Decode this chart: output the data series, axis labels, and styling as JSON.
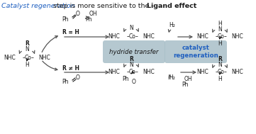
{
  "title_blue": "Catalyst regeneration",
  "title_rest": " step is more sensitive to the ",
  "title_bold": "Ligand effect",
  "bg_color": "#ffffff",
  "box1_color": "#a8bfc8",
  "box2_color": "#a8bfc8",
  "box1_text": "hydride transfer",
  "box2_text": "catalyst\nregeneration",
  "blue_color": "#2060c0",
  "black_color": "#1a1a1a",
  "gray_arrow": "#555555",
  "fs_title": 6.8,
  "fs_chem": 6.0,
  "fs_small": 5.5
}
